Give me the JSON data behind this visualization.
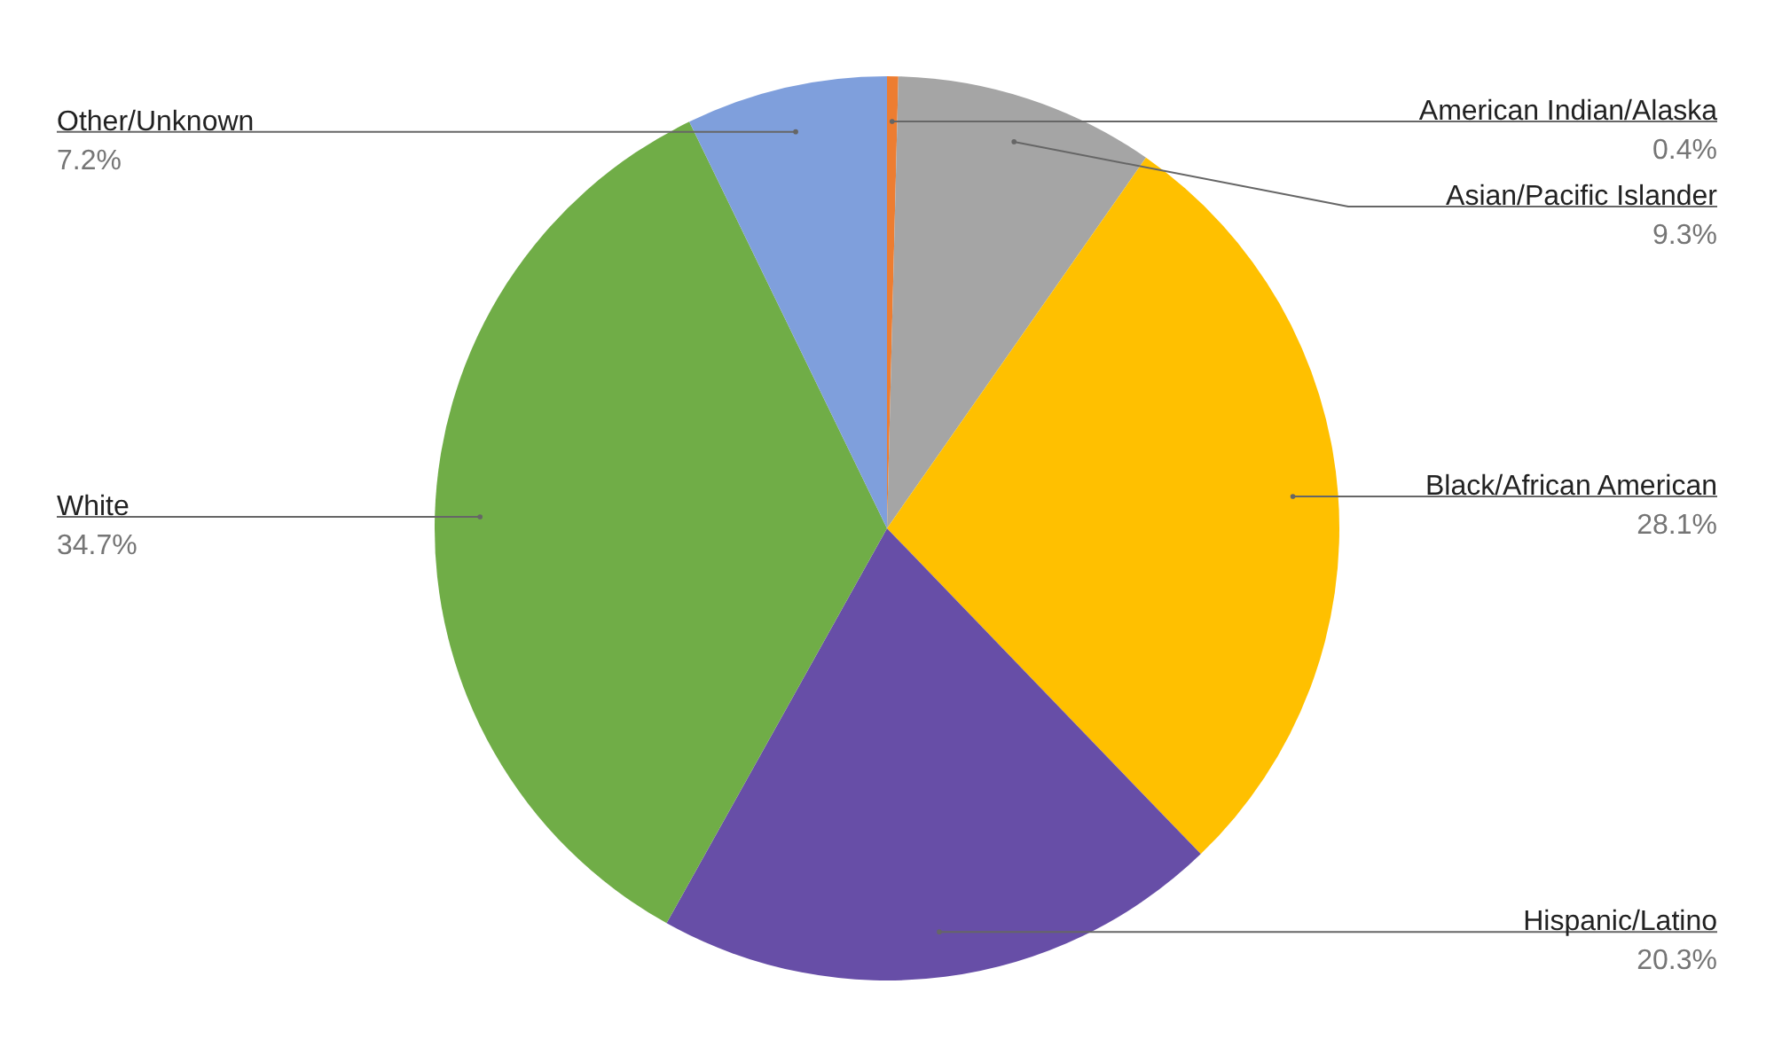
{
  "chart_data": {
    "type": "pie",
    "categories": [
      "American Indian/Alaska",
      "Asian/Pacific Islander",
      "Black/African American",
      "Hispanic/Latino",
      "White",
      "Other/Unknown"
    ],
    "values": [
      0.4,
      9.3,
      28.1,
      20.3,
      34.7,
      7.2
    ],
    "value_labels": [
      "0.4%",
      "9.3%",
      "28.1%",
      "20.3%",
      "34.7%",
      "7.2%"
    ],
    "colors": [
      "#ed7d31",
      "#a5a5a5",
      "#ffc000",
      "#674ea7",
      "#70ad47",
      "#7f9fdc"
    ]
  }
}
